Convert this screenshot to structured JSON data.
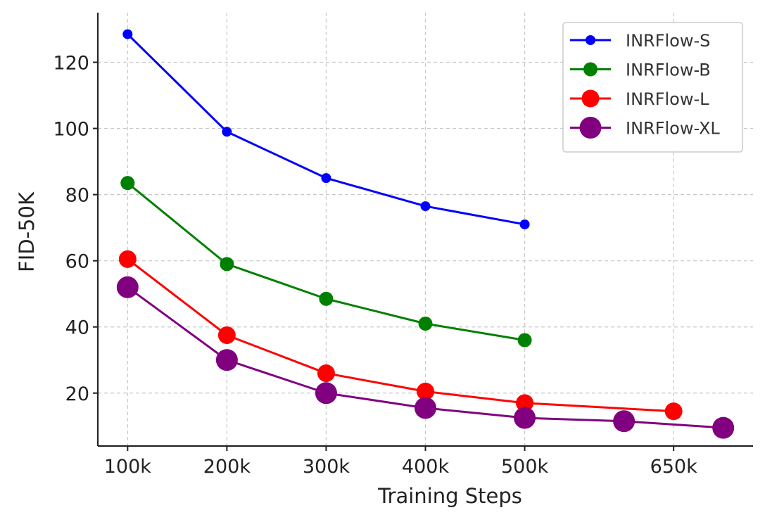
{
  "chart_data": {
    "type": "line",
    "title": "",
    "xlabel": "Training Steps",
    "ylabel": "FID-50K",
    "xlim": [
      70,
      730
    ],
    "ylim": [
      4,
      135
    ],
    "x_ticks": [
      {
        "value": 100,
        "label": "100k"
      },
      {
        "value": 200,
        "label": "200k"
      },
      {
        "value": 300,
        "label": "300k"
      },
      {
        "value": 400,
        "label": "400k"
      },
      {
        "value": 500,
        "label": "500k"
      },
      {
        "value": 650,
        "label": "650k"
      }
    ],
    "y_ticks": [
      {
        "value": 20,
        "label": "20"
      },
      {
        "value": 40,
        "label": "40"
      },
      {
        "value": 60,
        "label": "60"
      },
      {
        "value": 80,
        "label": "80"
      },
      {
        "value": 100,
        "label": "100"
      },
      {
        "value": 120,
        "label": "120"
      }
    ],
    "grid": true,
    "legend_position": "top-right",
    "series": [
      {
        "name": "INRFlow-S",
        "color": "#0000ff",
        "marker_size": "small",
        "x": [
          100,
          200,
          300,
          400,
          500
        ],
        "values": [
          128.5,
          99,
          85,
          76.5,
          71
        ]
      },
      {
        "name": "INRFlow-B",
        "color": "#008000",
        "marker_size": "medium",
        "x": [
          100,
          200,
          300,
          400,
          500
        ],
        "values": [
          83.5,
          59,
          48.5,
          41,
          36
        ]
      },
      {
        "name": "INRFlow-L",
        "color": "#ff0000",
        "marker_size": "large",
        "x": [
          100,
          200,
          300,
          400,
          500,
          650
        ],
        "values": [
          60.5,
          37.5,
          26,
          20.5,
          17,
          14.5
        ]
      },
      {
        "name": "INRFlow-XL",
        "color": "#800080",
        "marker_size": "xlarge",
        "x": [
          100,
          200,
          300,
          400,
          500,
          600,
          700
        ],
        "values": [
          52,
          30,
          20,
          15.5,
          12.5,
          11.5,
          9.5
        ]
      }
    ]
  }
}
